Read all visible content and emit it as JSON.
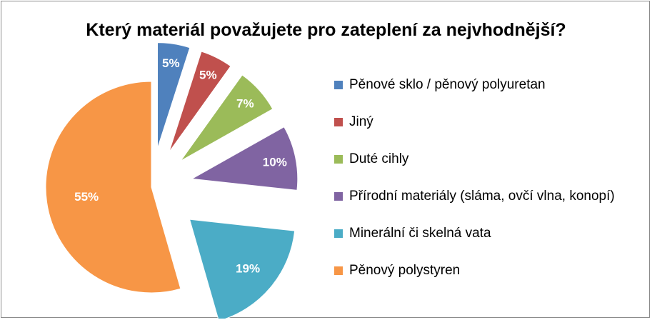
{
  "chart_data": {
    "type": "pie",
    "title": "Který materiál považujete pro zateplení za nejvhodnější?",
    "categories": [
      "Pěnové sklo / pěnový polyuretan",
      "Jiný",
      "Duté cihly",
      "Přírodní materiály (sláma, ovčí vlna, konopí)",
      "Minerální či skelná vata",
      "Pěnový polystyren"
    ],
    "values": [
      5,
      5,
      7,
      10,
      19,
      55
    ],
    "labels": [
      "5%",
      "5%",
      "7%",
      "10%",
      "19%",
      "55%"
    ],
    "colors": [
      "#4f81bd",
      "#c0504d",
      "#9bbb59",
      "#8064a2",
      "#4bacc6",
      "#f79646"
    ],
    "exploded": true,
    "legend_position": "right"
  }
}
